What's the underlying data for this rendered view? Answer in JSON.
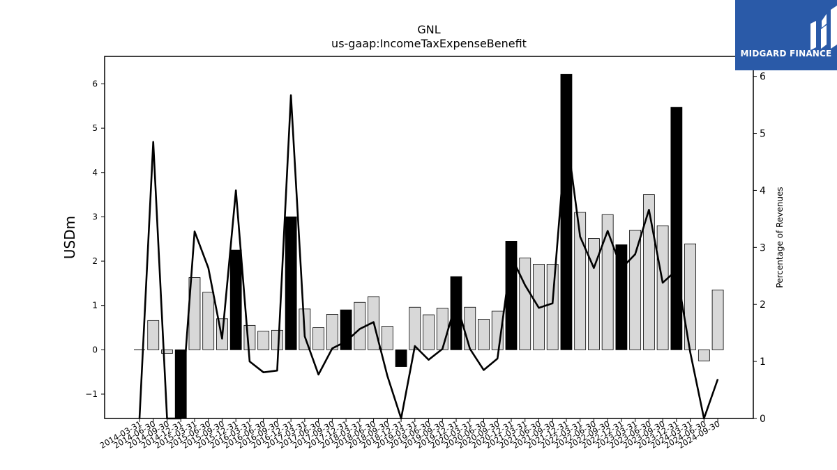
{
  "header": {
    "title": "GNL",
    "subtitle": "us-gaap:IncomeTaxExpenseBenefit"
  },
  "logo": {
    "text": "MIDGARD FINANCE",
    "color": "#2a5aa8"
  },
  "chart_data": {
    "type": "bar",
    "title": "GNL",
    "subtitle": "us-gaap:IncomeTaxExpenseBenefit",
    "ylabel": "USDm",
    "y2label": "Percentage of Revenues",
    "ylim": [
      -1.55,
      6.62
    ],
    "y2lim": [
      0,
      6.35
    ],
    "yticks": [
      -1,
      0,
      1,
      2,
      3,
      4,
      5,
      6
    ],
    "yticks_labels": [
      "−1",
      "0",
      "1",
      "2",
      "3",
      "4",
      "5",
      "6"
    ],
    "y2ticks": [
      0,
      1,
      2,
      3,
      4,
      5,
      6
    ],
    "grid": false,
    "colors": {
      "q4_bar": "#000000",
      "other_bar": "#d8d8d8",
      "line": "#000000"
    },
    "categories": [
      "2014-03-31",
      "2014-06-30",
      "2014-09-30",
      "2014-12-31",
      "2015-03-31",
      "2015-06-30",
      "2015-09-30",
      "2015-12-31",
      "2016-03-31",
      "2016-06-30",
      "2016-09-30",
      "2016-12-31",
      "2017-03-31",
      "2017-06-30",
      "2017-09-30",
      "2017-12-31",
      "2018-03-31",
      "2018-06-30",
      "2018-09-30",
      "2018-12-31",
      "2019-03-31",
      "2019-06-30",
      "2019-09-30",
      "2019-12-31",
      "2020-03-31",
      "2020-06-30",
      "2020-09-30",
      "2020-12-31",
      "2021-03-31",
      "2021-06-30",
      "2021-09-30",
      "2021-12-31",
      "2022-03-31",
      "2022-06-30",
      "2022-09-30",
      "2022-12-31",
      "2023-03-31",
      "2023-06-30",
      "2023-09-30",
      "2023-12-31",
      "2024-03-31",
      "2024-06-30",
      "2024-09-30"
    ],
    "series": [
      {
        "type": "bar",
        "axis": "left",
        "values": [
          0.0,
          0.66,
          -0.08,
          -1.6,
          1.63,
          1.3,
          0.7,
          2.25,
          0.55,
          0.42,
          0.44,
          3.0,
          0.92,
          0.5,
          0.8,
          0.9,
          1.07,
          1.2,
          0.53,
          -0.38,
          0.96,
          0.79,
          0.94,
          1.65,
          0.96,
          0.69,
          0.87,
          2.45,
          2.07,
          1.93,
          1.93,
          6.22,
          3.1,
          2.51,
          3.05,
          2.37,
          2.7,
          3.5,
          2.8,
          5.47,
          2.39,
          -0.25,
          1.35
        ],
        "highlight": [
          false,
          false,
          false,
          true,
          false,
          false,
          false,
          true,
          false,
          false,
          false,
          true,
          false,
          false,
          false,
          true,
          false,
          false,
          false,
          true,
          false,
          false,
          false,
          true,
          false,
          false,
          false,
          true,
          false,
          false,
          false,
          true,
          false,
          false,
          false,
          true,
          false,
          false,
          false,
          true,
          false,
          false,
          false
        ]
      },
      {
        "type": "line",
        "axis": "right",
        "values": [
          null,
          4.85,
          -0.05,
          -0.6,
          3.28,
          2.64,
          1.4,
          4.0,
          1.0,
          0.81,
          0.84,
          5.67,
          1.44,
          0.77,
          1.23,
          1.35,
          1.57,
          1.69,
          0.75,
          -0.6,
          1.27,
          1.03,
          1.22,
          2.04,
          1.22,
          0.85,
          1.05,
          2.84,
          2.34,
          1.94,
          2.02,
          5.03,
          3.19,
          2.64,
          3.29,
          2.63,
          2.88,
          3.66,
          2.38,
          2.6,
          1.16,
          -0.3,
          0.69
        ]
      }
    ]
  }
}
